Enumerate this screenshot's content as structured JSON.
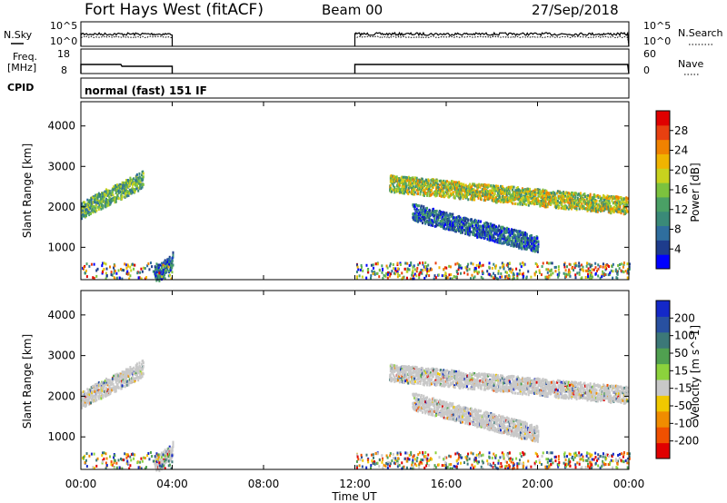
{
  "header": {
    "title": "Fort Hays West (fitACF)",
    "beam": "Beam 00",
    "date": "27/Sep/2018"
  },
  "panels": {
    "nsky": {
      "left_label": "N.Sky",
      "right_label": "N.Search",
      "left_ticks": [
        "10^5",
        "10^0"
      ],
      "right_ticks": [
        "10^5",
        "10^0"
      ]
    },
    "freq": {
      "left_label_1": "Freq.",
      "left_label_2": "[MHz]",
      "right_label": "Nave",
      "left_ticks": [
        "18",
        "8"
      ],
      "right_ticks": [
        "60",
        "0"
      ]
    },
    "cpid": {
      "label": "CPID",
      "value": "normal (fast) 151 IF"
    }
  },
  "colors": {
    "power_scale": [
      "#0000ff",
      "#1e3c8c",
      "#2f6e9e",
      "#3a8a78",
      "#4aa065",
      "#7cc23e",
      "#c8d21e",
      "#f0b400",
      "#f08200",
      "#e84010",
      "#e00000"
    ],
    "velocity_scale": [
      "#1428c8",
      "#2850a0",
      "#3c7878",
      "#50a050",
      "#8cd23c",
      "#c8c8c8",
      "#f0c800",
      "#f08c00",
      "#f05000",
      "#e00000"
    ]
  },
  "chart_data": [
    {
      "type": "heatmap",
      "name": "power",
      "ylabel": "Slant Range [km]",
      "yticks": [
        "1000",
        "2000",
        "3000",
        "4000"
      ],
      "ylim": [
        200,
        4600
      ],
      "xlim_hours": [
        0,
        24
      ],
      "colorbar": {
        "label": "Power [dB]",
        "ticks": [
          "4",
          "8",
          "12",
          "16",
          "20",
          "24",
          "28"
        ],
        "range": [
          0,
          32
        ]
      },
      "data_gap_hours": [
        4.0,
        12.0
      ],
      "echo_regions": [
        {
          "t0": 0.0,
          "t1": 2.7,
          "r_start": 1950,
          "r_end": 2700,
          "level": "medium"
        },
        {
          "t0": 3.2,
          "t1": 4.0,
          "r_start": 300,
          "r_end": 700,
          "level": "low"
        },
        {
          "t0": 13.5,
          "t1": 23.9,
          "r_start": 2600,
          "r_end": 2050,
          "level": "high"
        },
        {
          "t0": 14.5,
          "t1": 20.0,
          "r_start": 1900,
          "r_end": 1100,
          "level": "low"
        }
      ]
    },
    {
      "type": "heatmap",
      "name": "velocity",
      "ylabel": "Slant Range [km]",
      "yticks": [
        "1000",
        "2000",
        "3000",
        "4000"
      ],
      "ylim": [
        200,
        4600
      ],
      "xlim_hours": [
        0,
        24
      ],
      "xticks": [
        "00:00",
        "04:00",
        "08:00",
        "12:00",
        "16:00",
        "20:00",
        "00:00"
      ],
      "xlabel": "Time UT",
      "colorbar": {
        "label": "Velocity [m s^-1]",
        "ticks": [
          "200",
          "100",
          "50",
          "15",
          "-15",
          "-50",
          "-100",
          "-200"
        ]
      },
      "data_gap_hours": [
        4.0,
        12.0
      ]
    }
  ]
}
